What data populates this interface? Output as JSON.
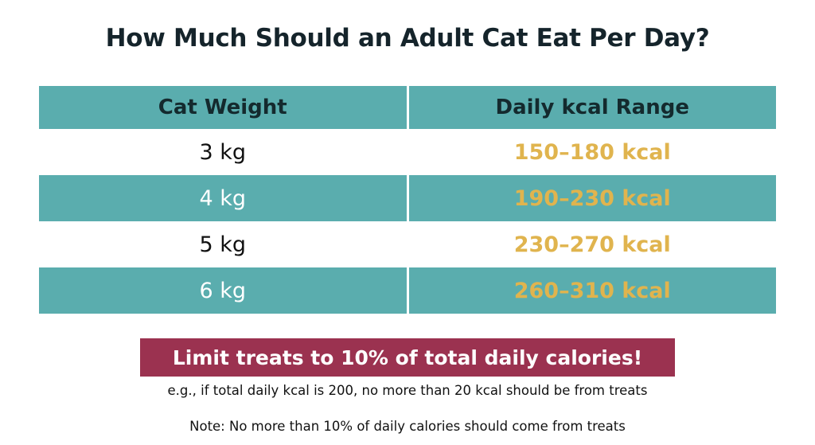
{
  "title": "How Much Should an Adult Cat Eat Per Day?",
  "table": {
    "headers": [
      "Cat Weight",
      "Daily kcal Range"
    ],
    "rows": [
      {
        "weight": "3 kg",
        "kcal": "150–180 kcal"
      },
      {
        "weight": "4 kg",
        "kcal": "190–230 kcal"
      },
      {
        "weight": "5 kg",
        "kcal": "230–270 kcal"
      },
      {
        "weight": "6 kg",
        "kcal": "260–310 kcal"
      }
    ]
  },
  "banner": "Limit treats to 10% of total daily calories!",
  "example": "e.g., if total daily kcal is 200, no more than 20 kcal should be from treats",
  "note": "Note: No more than 10% of daily calories should come from treats",
  "colors": {
    "teal": "#5aadae",
    "gold": "#e0b44e",
    "banner": "#9b3250"
  }
}
